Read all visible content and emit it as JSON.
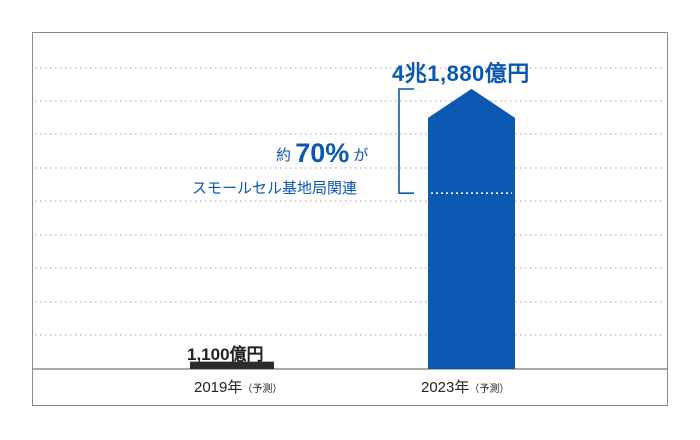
{
  "chart_data": {
    "type": "bar",
    "categories": [
      "2019",
      "2023"
    ],
    "category_labels": [
      {
        "year": "2019",
        "unit": "年",
        "note": "（予測）"
      },
      {
        "year": "2023",
        "unit": "年",
        "note": "（予測）"
      }
    ],
    "values": [
      1100,
      41880
    ],
    "value_unit": "億円",
    "data_labels": [
      "1,100億円",
      "4兆1,880億円"
    ],
    "annotation": {
      "prefix": "約",
      "value_label": "70%",
      "suffix": "が",
      "description": "スモールセル基地局関連",
      "share": 0.7,
      "applies_to": "2023"
    },
    "grid": true,
    "grid_style": "dotted",
    "ylim": [
      0,
      45000
    ],
    "colors": {
      "bar_2019": "#2b2b2b",
      "bar_2023": "#0a58b0",
      "annotation": "#0a58b0",
      "grid": "#b5b5b5",
      "axis": "#555555"
    }
  }
}
